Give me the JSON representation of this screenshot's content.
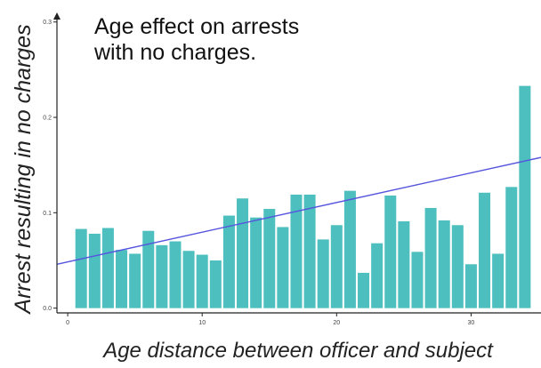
{
  "chart_data": {
    "type": "bar",
    "title": "Age effect on arrests\nwith no charges.",
    "xlabel": "Age distance between officer and subject",
    "ylabel": "Arrest resulting in no charges",
    "x_ticks": [
      0,
      10,
      20,
      30
    ],
    "x_tick_labels": [
      "0",
      "10",
      "20",
      "30"
    ],
    "y_ticks": [
      0.0,
      0.1,
      0.2,
      0.3
    ],
    "y_tick_labels": [
      "0.0",
      "0.1",
      "0.2",
      "0.3"
    ],
    "xlim": [
      -0.8,
      35.2
    ],
    "ylim": [
      -0.005,
      0.31
    ],
    "grid": false,
    "bar_color": "#4dbfbf",
    "trend_color": "#5555dd",
    "x": [
      1,
      2,
      3,
      4,
      5,
      6,
      7,
      8,
      9,
      10,
      11,
      12,
      13,
      14,
      15,
      16,
      17,
      18,
      19,
      20,
      21,
      22,
      23,
      24,
      25,
      26,
      27,
      28,
      29,
      30,
      31,
      32,
      33,
      34
    ],
    "values": [
      0.083,
      0.078,
      0.084,
      0.061,
      0.057,
      0.081,
      0.066,
      0.07,
      0.06,
      0.056,
      0.05,
      0.097,
      0.115,
      0.095,
      0.104,
      0.085,
      0.119,
      0.119,
      0.072,
      0.087,
      0.123,
      0.037,
      0.068,
      0.118,
      0.091,
      0.059,
      0.105,
      0.092,
      0.087,
      0.046,
      0.121,
      0.057,
      0.127,
      0.233
    ],
    "trend_line": {
      "x": [
        -0.8,
        35.2
      ],
      "y": [
        0.046,
        0.158
      ]
    }
  }
}
